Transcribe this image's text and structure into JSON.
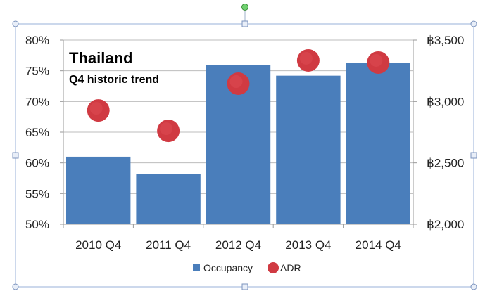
{
  "chart_data": {
    "type": "bar",
    "title": "Thailand",
    "subtitle": "Q4 historic trend",
    "categories": [
      "2010 Q4",
      "2011 Q4",
      "2012 Q4",
      "2013 Q4",
      "2014 Q4"
    ],
    "series": [
      {
        "name": "Occupancy",
        "type": "bar",
        "axis": "left",
        "color": "#4A7EBB",
        "values": [
          61.0,
          58.2,
          75.9,
          74.2,
          76.3
        ]
      },
      {
        "name": "ADR",
        "type": "scatter",
        "axis": "right",
        "color": "#D03A42",
        "values": [
          2927,
          2761,
          3145,
          3334,
          3317
        ]
      }
    ],
    "y_left": {
      "range": [
        50,
        80
      ],
      "ticks": [
        50,
        55,
        60,
        65,
        70,
        75,
        80
      ],
      "tick_labels": [
        "50%",
        "55%",
        "60%",
        "65%",
        "70%",
        "75%",
        "80%"
      ]
    },
    "y_right": {
      "range": [
        2000,
        3500
      ],
      "ticks": [
        2000,
        2500,
        3000,
        3500
      ],
      "tick_labels": [
        "฿2,000",
        "฿2,500",
        "฿3,000",
        "฿3,500"
      ]
    },
    "grid": true,
    "legend": "bottom"
  }
}
